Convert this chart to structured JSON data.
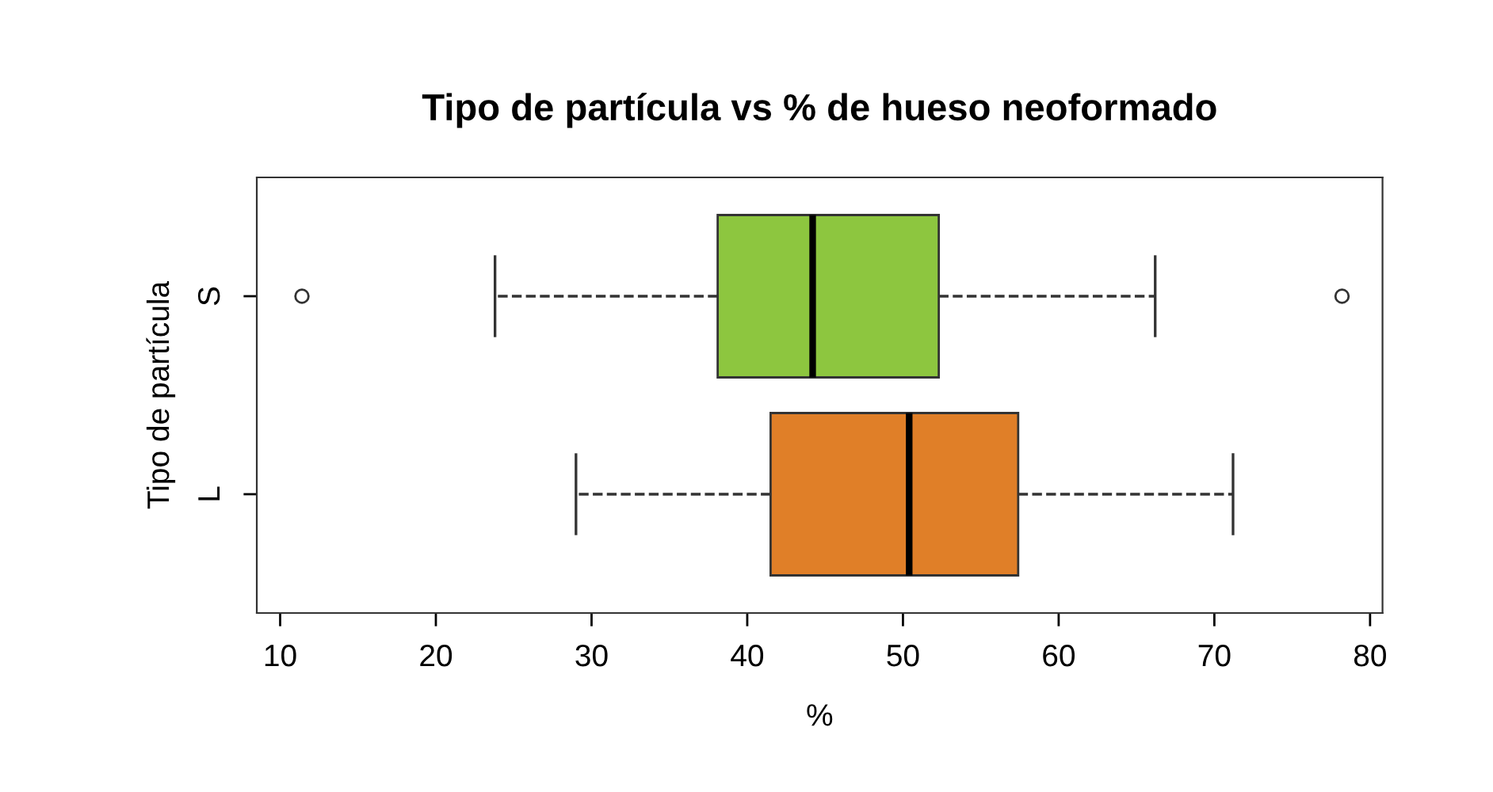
{
  "chart_data": {
    "type": "box",
    "title": "Tipo de partícula vs % de hueso neoformado",
    "xlabel": "%",
    "ylabel": "Tipo de partícula",
    "orientation": "horizontal",
    "categories": [
      "S",
      "L"
    ],
    "series": [
      {
        "color": "#8dc63f",
        "boxes": [
          {
            "low": 23.8,
            "q1": 38.1,
            "median": 44.2,
            "q3": 52.3,
            "high": 66.2,
            "outliers": [
              11.4,
              78.2
            ]
          },
          null
        ]
      },
      {
        "color": "#e07f28",
        "boxes": [
          null,
          {
            "low": 29.0,
            "q1": 41.5,
            "median": 50.4,
            "q3": 57.4,
            "high": 71.2
          }
        ]
      }
    ],
    "xlim": [
      8.5,
      80.8
    ],
    "xticks": [
      10,
      20,
      30,
      40,
      50,
      60,
      70,
      80
    ],
    "grid": false,
    "line_style": "dashed"
  }
}
